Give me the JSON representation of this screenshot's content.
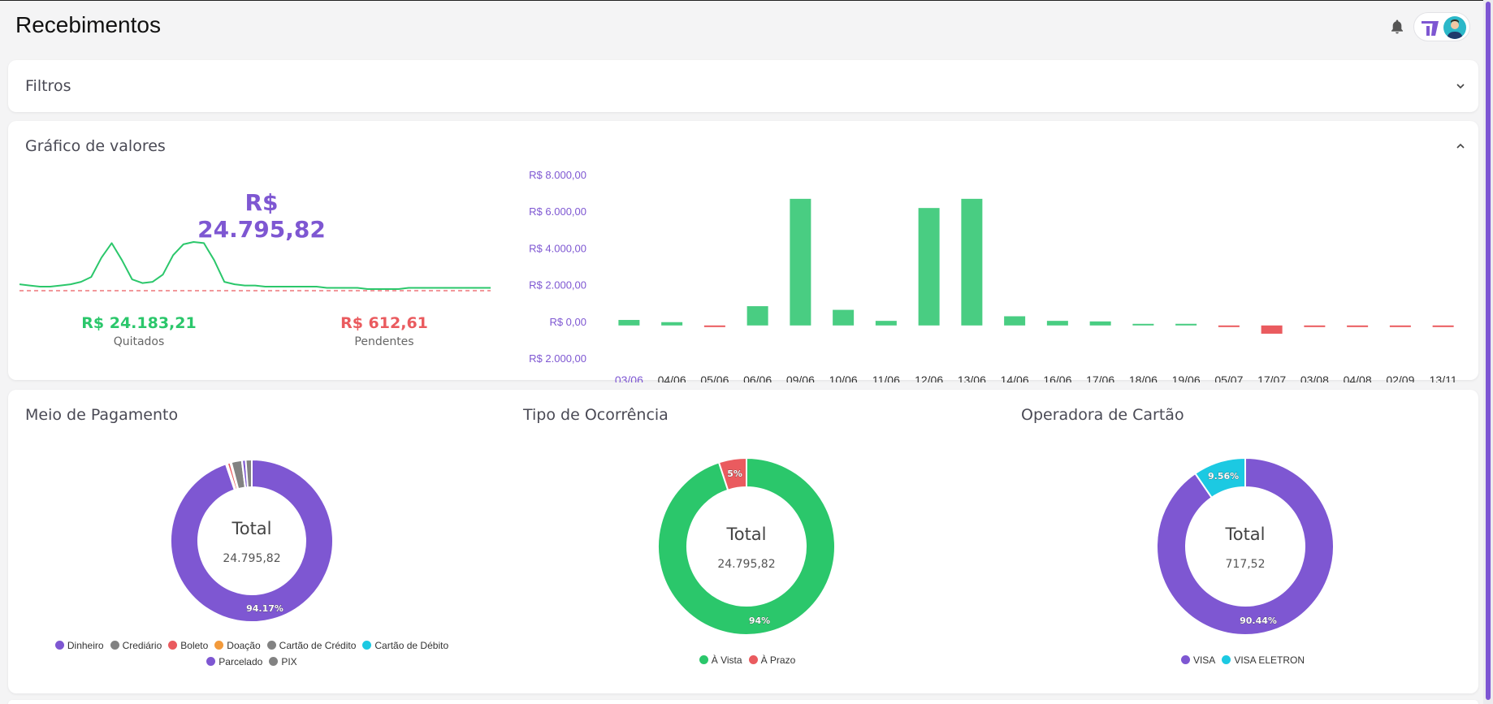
{
  "header": {
    "title": "Recebimentos"
  },
  "filters": {
    "title": "Filtros"
  },
  "values_panel": {
    "title": "Gráfico de valores",
    "total": "R$ 24.795,82",
    "paid_value": "R$ 24.183,21",
    "paid_label": "Quitados",
    "pending_value": "R$ 612,61",
    "pending_label": "Pendentes"
  },
  "chart_data": [
    {
      "type": "bar",
      "title": "",
      "categories": [
        "03/06",
        "04/06",
        "05/06",
        "06/06",
        "09/06",
        "10/06",
        "11/06",
        "12/06",
        "13/06",
        "14/06",
        "16/06",
        "17/06",
        "18/06",
        "19/06",
        "05/07",
        "17/07",
        "03/08",
        "04/08",
        "02/09",
        "13/11"
      ],
      "values": [
        300,
        180,
        -80,
        1050,
        6900,
        850,
        250,
        6400,
        6900,
        500,
        250,
        220,
        80,
        90,
        -20,
        -450,
        -40,
        -30,
        -60,
        -30
      ],
      "ylim": [
        -2000,
        8000
      ],
      "y_ticks": [
        "R$ 2.000,00",
        "R$ 0,00",
        "R$ 2.000,00",
        "R$ 4.000,00",
        "R$ 6.000,00",
        "R$ 8.000,00"
      ],
      "positive_color": "#49cd82",
      "negative_color": "#ea5b5f",
      "highlight_category": "03/06"
    },
    {
      "type": "pie",
      "title": "Meio de Pagamento",
      "center_label": "Total",
      "center_value": "24.795,82",
      "labels": [
        "Dinheiro",
        "Crediário",
        "Boleto",
        "Doação",
        "Cartão de Crédito",
        "Cartão de Débito",
        "Parcelado",
        "PIX"
      ],
      "values": [
        94.17,
        0.3,
        0.6,
        0.2,
        2.1,
        0.05,
        0.7,
        1.2
      ],
      "colors": [
        "#7e57d2",
        "#828282",
        "#ea5b5f",
        "#f29a3c",
        "#828282",
        "#1cc9e2",
        "#7e57d2",
        "#828282"
      ],
      "data_labels": [
        "94.17%",
        "",
        "",
        "",
        "",
        "",
        "",
        ""
      ]
    },
    {
      "type": "pie",
      "title": "Tipo de Ocorrência",
      "center_label": "Total",
      "center_value": "24.795,82",
      "labels": [
        "À Vista",
        "À Prazo"
      ],
      "values": [
        94,
        5
      ],
      "colors": [
        "#2bc76b",
        "#ea5b5f"
      ],
      "data_labels": [
        "94%",
        "5%"
      ]
    },
    {
      "type": "pie",
      "title": "Operadora de Cartão",
      "center_label": "Total",
      "center_value": "717,52",
      "labels": [
        "VISA",
        "VISA ELETRON"
      ],
      "values": [
        90.44,
        9.56
      ],
      "colors": [
        "#7e57d2",
        "#1cc9e2"
      ],
      "data_labels": [
        "90.44%",
        "9.56%"
      ]
    }
  ],
  "sparkline": {
    "line_color": "#2bc76b",
    "baseline_color": "#ea5b5f",
    "values": [
      6,
      5,
      4,
      4,
      5,
      6,
      8,
      12,
      28,
      40,
      26,
      10,
      7,
      8,
      14,
      30,
      39,
      41,
      40,
      26,
      8,
      6,
      5,
      5,
      4,
      4,
      4,
      4,
      4,
      4,
      3,
      3,
      3,
      3,
      2,
      2,
      2,
      2,
      3,
      3,
      3,
      3,
      3,
      3,
      3,
      3,
      3
    ]
  }
}
